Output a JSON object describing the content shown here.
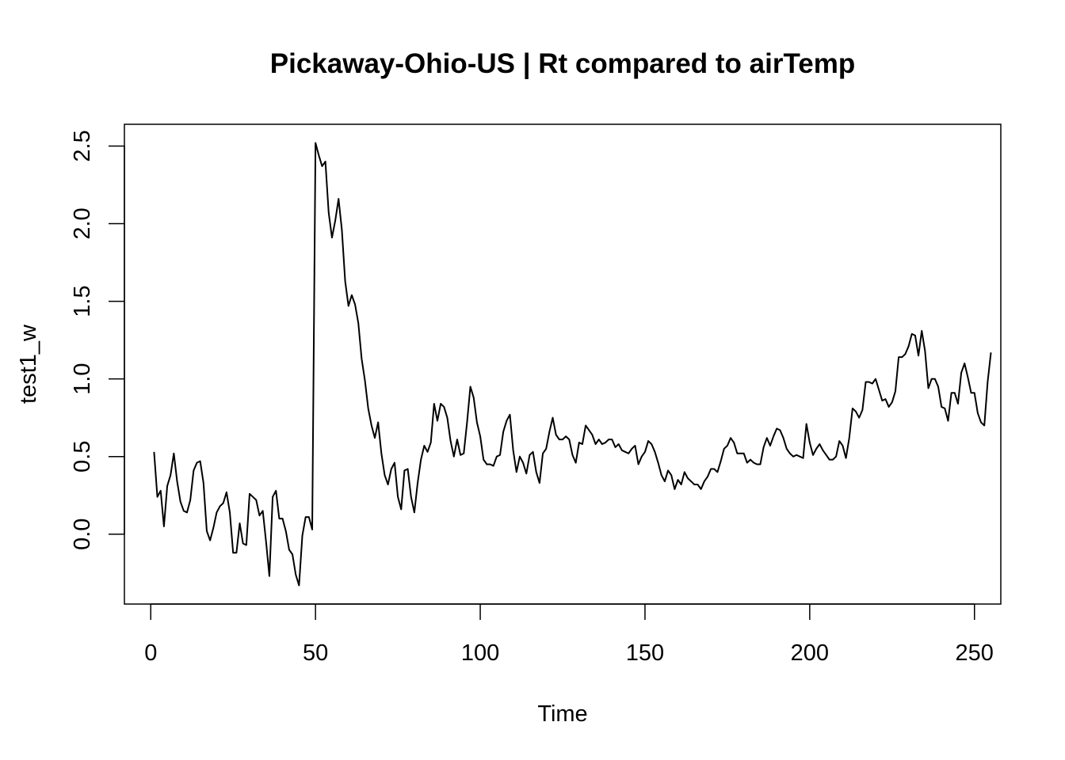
{
  "chart_data": {
    "type": "line",
    "title": "Pickaway-Ohio-US | Rt compared to airTemp",
    "xlabel": "Time",
    "ylabel": "test1_w",
    "xlim": [
      -8,
      258
    ],
    "ylim": [
      -0.45,
      2.64
    ],
    "x_ticks": [
      0,
      50,
      100,
      150,
      200,
      250
    ],
    "y_ticks": [
      0.0,
      0.5,
      1.0,
      1.5,
      2.0,
      2.5
    ],
    "x_tick_labels": [
      "0",
      "50",
      "100",
      "150",
      "200",
      "250"
    ],
    "y_tick_labels": [
      "0.0",
      "0.5",
      "1.0",
      "1.5",
      "2.0",
      "2.5"
    ],
    "grid": false,
    "legend": "none",
    "line_color": "#000000",
    "series": [
      {
        "x_start": 1,
        "values": [
          0.53,
          0.24,
          0.28,
          0.05,
          0.31,
          0.38,
          0.52,
          0.34,
          0.21,
          0.15,
          0.14,
          0.22,
          0.41,
          0.46,
          0.47,
          0.33,
          0.02,
          -0.04,
          0.04,
          0.14,
          0.18,
          0.2,
          0.27,
          0.14,
          -0.12,
          -0.12,
          0.07,
          -0.06,
          -0.07,
          0.26,
          0.24,
          0.22,
          0.12,
          0.15,
          -0.05,
          -0.27,
          0.24,
          0.28,
          0.1,
          0.1,
          0.02,
          -0.1,
          -0.13,
          -0.26,
          -0.33,
          -0.01,
          0.11,
          0.11,
          0.03,
          2.52,
          2.44,
          2.37,
          2.4,
          2.07,
          1.91,
          2.02,
          2.16,
          1.96,
          1.63,
          1.47,
          1.54,
          1.48,
          1.36,
          1.13,
          0.99,
          0.81,
          0.7,
          0.62,
          0.72,
          0.52,
          0.38,
          0.32,
          0.42,
          0.46,
          0.24,
          0.16,
          0.41,
          0.42,
          0.24,
          0.14,
          0.33,
          0.48,
          0.57,
          0.53,
          0.59,
          0.84,
          0.73,
          0.84,
          0.82,
          0.75,
          0.6,
          0.5,
          0.61,
          0.51,
          0.52,
          0.72,
          0.95,
          0.88,
          0.72,
          0.63,
          0.48,
          0.45,
          0.45,
          0.44,
          0.5,
          0.51,
          0.66,
          0.73,
          0.77,
          0.54,
          0.4,
          0.5,
          0.46,
          0.39,
          0.51,
          0.53,
          0.4,
          0.33,
          0.52,
          0.55,
          0.66,
          0.75,
          0.64,
          0.61,
          0.61,
          0.63,
          0.61,
          0.51,
          0.46,
          0.59,
          0.58,
          0.7,
          0.67,
          0.64,
          0.58,
          0.61,
          0.58,
          0.59,
          0.61,
          0.61,
          0.56,
          0.58,
          0.54,
          0.53,
          0.52,
          0.55,
          0.57,
          0.45,
          0.5,
          0.53,
          0.6,
          0.58,
          0.53,
          0.46,
          0.38,
          0.34,
          0.41,
          0.38,
          0.29,
          0.35,
          0.32,
          0.4,
          0.36,
          0.34,
          0.32,
          0.32,
          0.29,
          0.34,
          0.37,
          0.42,
          0.42,
          0.4,
          0.47,
          0.55,
          0.57,
          0.62,
          0.59,
          0.52,
          0.52,
          0.52,
          0.46,
          0.48,
          0.46,
          0.45,
          0.45,
          0.56,
          0.62,
          0.57,
          0.63,
          0.68,
          0.67,
          0.62,
          0.55,
          0.52,
          0.5,
          0.51,
          0.5,
          0.49,
          0.71,
          0.59,
          0.51,
          0.55,
          0.58,
          0.54,
          0.51,
          0.48,
          0.48,
          0.5,
          0.6,
          0.57,
          0.49,
          0.62,
          0.81,
          0.79,
          0.75,
          0.8,
          0.98,
          0.98,
          0.97,
          1.0,
          0.93,
          0.86,
          0.87,
          0.82,
          0.85,
          0.92,
          1.14,
          1.14,
          1.16,
          1.21,
          1.29,
          1.28,
          1.15,
          1.31,
          1.18,
          0.94,
          1.0,
          1.0,
          0.95,
          0.82,
          0.81,
          0.73,
          0.91,
          0.91,
          0.84,
          1.04,
          1.1,
          1.01,
          0.91,
          0.91,
          0.78,
          0.72,
          0.7,
          0.98,
          1.17
        ]
      }
    ]
  }
}
